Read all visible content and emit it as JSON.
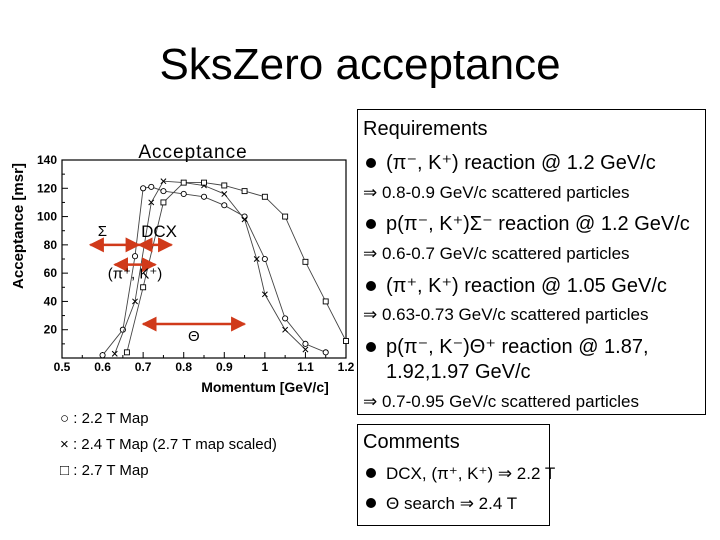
{
  "slide": {
    "title": "SksZero acceptance",
    "requirements": {
      "heading": "Requirements",
      "items": [
        {
          "bullet": "(π⁻, K⁺) reaction @ 1.2 GeV/c",
          "sub": "⇒ 0.8-0.9 GeV/c scattered particles"
        },
        {
          "bullet": "p(π⁻, K⁺)Σ⁻ reaction @ 1.2 GeV/c",
          "sub": "⇒ 0.6-0.7 GeV/c scattered particles"
        },
        {
          "bullet": "(π⁺, K⁺) reaction @ 1.05 GeV/c",
          "sub": "⇒ 0.63-0.73 GeV/c scattered particles"
        },
        {
          "bullet": "p(π⁻, K⁻)Θ⁺ reaction @ 1.87,",
          "bullet2": "1.92,1.97 GeV/c",
          "sub": "⇒ 0.7-0.95 GeV/c scattered particles"
        }
      ]
    },
    "comments": {
      "heading": "Comments",
      "items": [
        "DCX, (π⁺, K⁺) ⇒ 2.2 T",
        "Θ search ⇒ 2.4 T"
      ]
    },
    "legend": [
      {
        "marker": "○",
        "text": ": 2.2 T Map"
      },
      {
        "marker": "×",
        "text": ": 2.4 T Map (2.7 T map scaled)"
      },
      {
        "marker": "□",
        "text": ": 2.7 T Map"
      }
    ]
  },
  "chart_data": {
    "type": "line",
    "title": "Acceptance",
    "xlabel": "Momentum [GeV/c]",
    "ylabel": "Acceptance [msr]",
    "xlim": [
      0.5,
      1.2
    ],
    "ylim": [
      0,
      140
    ],
    "xticks": [
      "0.5",
      "0.6",
      "0.7",
      "0.8",
      "0.9",
      "1",
      "1.1",
      "1.2"
    ],
    "yticks": [
      "20",
      "40",
      "60",
      "80",
      "100",
      "120",
      "140"
    ],
    "series": [
      {
        "marker": "circle",
        "x": [
          0.6,
          0.65,
          0.68,
          0.7,
          0.72,
          0.75,
          0.8,
          0.85,
          0.9,
          0.95,
          1.0,
          1.05,
          1.1,
          1.15
        ],
        "y": [
          2,
          20,
          72,
          120,
          121,
          118,
          116,
          114,
          108,
          100,
          70,
          28,
          10,
          4
        ]
      },
      {
        "marker": "cross",
        "x": [
          0.63,
          0.68,
          0.72,
          0.75,
          0.8,
          0.85,
          0.9,
          0.95,
          0.98,
          1.0,
          1.05,
          1.1
        ],
        "y": [
          3,
          40,
          110,
          125,
          124,
          122,
          116,
          98,
          70,
          45,
          20,
          6
        ]
      },
      {
        "marker": "square",
        "x": [
          0.66,
          0.7,
          0.75,
          0.8,
          0.85,
          0.9,
          0.95,
          1.0,
          1.05,
          1.1,
          1.15,
          1.2
        ],
        "y": [
          4,
          50,
          110,
          124,
          124,
          122,
          118,
          114,
          100,
          68,
          40,
          12
        ]
      }
    ],
    "annotations": [
      {
        "label": "Σ",
        "x": [
          0.57,
          0.69
        ],
        "y": 80
      },
      {
        "label": "DCX",
        "x": [
          0.69,
          0.77
        ],
        "y": 80
      },
      {
        "label": "(π⁺, K⁺)",
        "x": [
          0.63,
          0.73
        ],
        "y": 66
      },
      {
        "label": "Θ",
        "x": [
          0.7,
          0.95
        ],
        "y": 24
      }
    ]
  }
}
